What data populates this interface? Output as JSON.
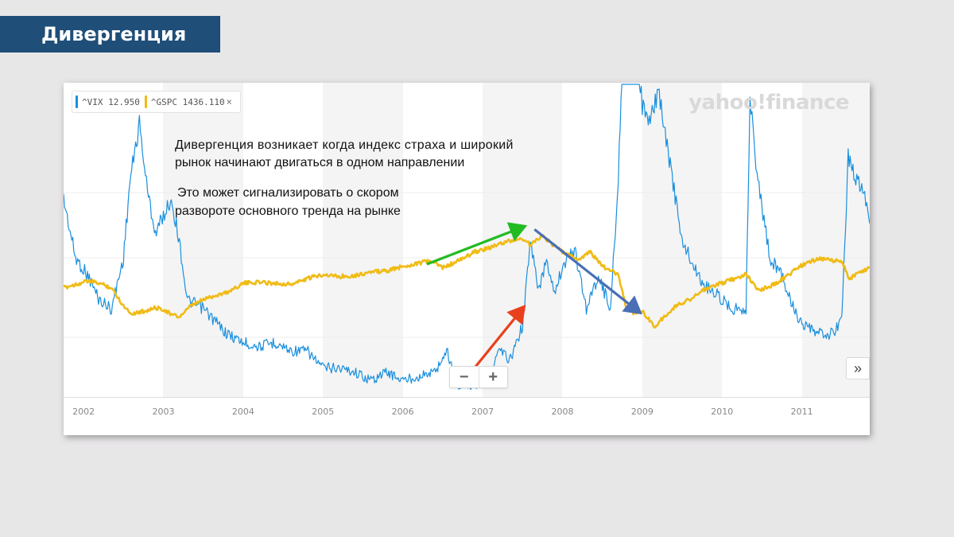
{
  "slide": {
    "title": "Дивергенция"
  },
  "legend": {
    "vix_label": "^VIX 12.950",
    "gspc_label": "^GSPC 1436.110",
    "close_symbol": "×"
  },
  "logo": "yahoo!finance",
  "annotations": {
    "line1": "Дивергенция возникает когда индекс страха и широкий",
    "line2": "рынок начинают двигаться в одном направлении",
    "line3": "Это может сигнализировать о скором",
    "line4": "развороте основного тренда на рынке"
  },
  "controls": {
    "zoom_out": "−",
    "zoom_in": "+",
    "scroll_right": "»"
  },
  "chart_data": {
    "type": "line",
    "x_ticks": [
      "2002",
      "2003",
      "2004",
      "2005",
      "2006",
      "2007",
      "2008",
      "2009",
      "2010",
      "2011"
    ],
    "xlim": [
      2001.75,
      2011.85
    ],
    "series": [
      {
        "name": "^VIX",
        "color": "#1a8fdd",
        "points": [
          [
            2001.75,
            33
          ],
          [
            2001.9,
            26
          ],
          [
            2002.05,
            24
          ],
          [
            2002.2,
            21
          ],
          [
            2002.35,
            20
          ],
          [
            2002.5,
            26
          ],
          [
            2002.58,
            35
          ],
          [
            2002.7,
            42
          ],
          [
            2002.8,
            34
          ],
          [
            2002.9,
            29
          ],
          [
            2003.0,
            31
          ],
          [
            2003.1,
            33
          ],
          [
            2003.2,
            28
          ],
          [
            2003.3,
            21
          ],
          [
            2003.5,
            20
          ],
          [
            2003.8,
            17
          ],
          [
            2004.0,
            16
          ],
          [
            2004.2,
            15.5
          ],
          [
            2004.4,
            16
          ],
          [
            2004.6,
            15
          ],
          [
            2004.8,
            15
          ],
          [
            2005.0,
            13
          ],
          [
            2005.2,
            13
          ],
          [
            2005.4,
            12.5
          ],
          [
            2005.6,
            11.5
          ],
          [
            2005.8,
            12.5
          ],
          [
            2006.0,
            11.5
          ],
          [
            2006.2,
            12
          ],
          [
            2006.4,
            12.5
          ],
          [
            2006.55,
            15
          ],
          [
            2006.7,
            11
          ],
          [
            2006.9,
            11
          ],
          [
            2007.1,
            12
          ],
          [
            2007.2,
            15
          ],
          [
            2007.35,
            14
          ],
          [
            2007.5,
            18
          ],
          [
            2007.6,
            28
          ],
          [
            2007.7,
            22
          ],
          [
            2007.8,
            26
          ],
          [
            2007.9,
            22
          ],
          [
            2008.0,
            25
          ],
          [
            2008.15,
            27
          ],
          [
            2008.3,
            20
          ],
          [
            2008.45,
            24
          ],
          [
            2008.6,
            20
          ],
          [
            2008.7,
            35
          ],
          [
            2008.78,
            60
          ],
          [
            2008.83,
            80
          ],
          [
            2008.9,
            55
          ],
          [
            2009.0,
            44
          ],
          [
            2009.1,
            42
          ],
          [
            2009.2,
            46
          ],
          [
            2009.3,
            40
          ],
          [
            2009.4,
            34
          ],
          [
            2009.5,
            28
          ],
          [
            2009.6,
            26
          ],
          [
            2009.75,
            23
          ],
          [
            2009.9,
            22
          ],
          [
            2010.0,
            21
          ],
          [
            2010.15,
            20
          ],
          [
            2010.3,
            20
          ],
          [
            2010.35,
            45
          ],
          [
            2010.45,
            35
          ],
          [
            2010.6,
            26
          ],
          [
            2010.75,
            24
          ],
          [
            2010.9,
            20
          ],
          [
            2011.0,
            18
          ],
          [
            2011.2,
            17
          ],
          [
            2011.4,
            17
          ],
          [
            2011.5,
            19
          ],
          [
            2011.58,
            38
          ],
          [
            2011.7,
            35
          ],
          [
            2011.8,
            33
          ],
          [
            2011.85,
            31
          ]
        ]
      },
      {
        "name": "^GSPC",
        "color": "#f0bb15",
        "points": [
          [
            2001.75,
            1080
          ],
          [
            2001.9,
            1110
          ],
          [
            2002.05,
            1140
          ],
          [
            2002.2,
            1120
          ],
          [
            2002.35,
            1080
          ],
          [
            2002.5,
            920
          ],
          [
            2002.6,
            850
          ],
          [
            2002.75,
            870
          ],
          [
            2002.9,
            900
          ],
          [
            2003.0,
            890
          ],
          [
            2003.1,
            840
          ],
          [
            2003.2,
            820
          ],
          [
            2003.35,
            920
          ],
          [
            2003.55,
            990
          ],
          [
            2003.8,
            1040
          ],
          [
            2004.0,
            1120
          ],
          [
            2004.2,
            1130
          ],
          [
            2004.4,
            1120
          ],
          [
            2004.6,
            1110
          ],
          [
            2004.8,
            1160
          ],
          [
            2005.0,
            1200
          ],
          [
            2005.2,
            1180
          ],
          [
            2005.4,
            1190
          ],
          [
            2005.6,
            1220
          ],
          [
            2005.8,
            1230
          ],
          [
            2006.0,
            1270
          ],
          [
            2006.2,
            1300
          ],
          [
            2006.35,
            1320
          ],
          [
            2006.5,
            1260
          ],
          [
            2006.7,
            1320
          ],
          [
            2006.9,
            1400
          ],
          [
            2007.1,
            1440
          ],
          [
            2007.3,
            1490
          ],
          [
            2007.5,
            1520
          ],
          [
            2007.6,
            1460
          ],
          [
            2007.75,
            1550
          ],
          [
            2007.85,
            1480
          ],
          [
            2008.0,
            1400
          ],
          [
            2008.2,
            1330
          ],
          [
            2008.35,
            1400
          ],
          [
            2008.5,
            1270
          ],
          [
            2008.7,
            1200
          ],
          [
            2008.8,
            900
          ],
          [
            2008.9,
            850
          ],
          [
            2009.0,
            880
          ],
          [
            2009.15,
            730
          ],
          [
            2009.3,
            840
          ],
          [
            2009.45,
            930
          ],
          [
            2009.6,
            980
          ],
          [
            2009.75,
            1050
          ],
          [
            2009.9,
            1100
          ],
          [
            2010.0,
            1120
          ],
          [
            2010.3,
            1200
          ],
          [
            2010.45,
            1060
          ],
          [
            2010.6,
            1090
          ],
          [
            2010.8,
            1180
          ],
          [
            2011.0,
            1280
          ],
          [
            2011.2,
            1340
          ],
          [
            2011.35,
            1330
          ],
          [
            2011.5,
            1310
          ],
          [
            2011.6,
            1160
          ],
          [
            2011.7,
            1210
          ],
          [
            2011.85,
            1260
          ]
        ]
      }
    ],
    "arrows": [
      {
        "color": "#22bb22",
        "from": [
          2006.3,
          1290
        ],
        "to": [
          2007.5,
          1620
        ]
      },
      {
        "color": "#4a6fb5",
        "from": [
          2007.65,
          1600
        ],
        "to": [
          2008.95,
          870
        ]
      },
      {
        "color": "#e8401c",
        "from": [
          2006.9,
          13
        ],
        "to": [
          2007.5,
          20
        ]
      }
    ]
  }
}
